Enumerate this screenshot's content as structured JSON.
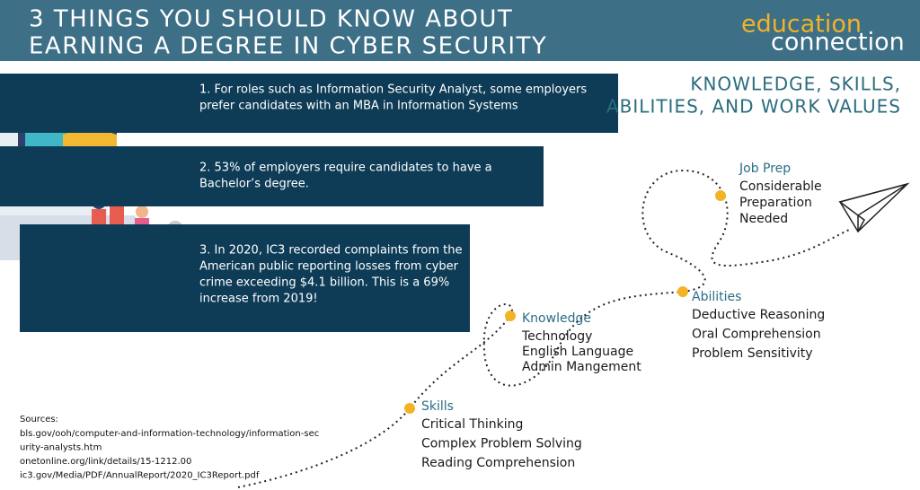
{
  "header": {
    "title_lines": [
      "3 THINGS YOU SHOULD KNOW ABOUT",
      "EARNING A DEGREE IN CYBER SECURITY"
    ]
  },
  "logo": {
    "top": "education",
    "bottom": "connection"
  },
  "facts": [
    {
      "lines": [
        "1. For roles such as Information Security Analyst, some employers",
        "prefer candidates with an MBA in Information Systems"
      ]
    },
    {
      "lines": [
        "2. 53% of employers require candidates to have a",
        "Bachelor’s degree."
      ]
    },
    {
      "lines": [
        "3. In 2020, IC3 recorded complaints from the",
        "American public reporting losses from cyber",
        "crime exceeding $4.1 billion. This is a 69%",
        "increase from 2019!"
      ]
    }
  ],
  "section": {
    "title_lines": [
      "KNOWLEDGE, SKILLS,",
      "ABILITIES, AND WORK VALUES"
    ]
  },
  "milestones": [
    {
      "heading": "Skills",
      "items": [
        "Critical Thinking",
        "Complex Problem Solving",
        "Reading Comprehension"
      ]
    },
    {
      "heading": "Knowledge",
      "items": [
        "Technology",
        "English Language",
        "Admin Mangement"
      ]
    },
    {
      "heading": "Abilities",
      "items": [
        "Deductive Reasoning",
        "Oral Comprehension",
        "Problem Sensitivity"
      ]
    },
    {
      "heading": "Job Prep",
      "items": [
        "Considerable",
        "Preparation",
        "Needed"
      ]
    }
  ],
  "sources": {
    "label": "Sources:",
    "lines": [
      "bls.gov/ooh/computer-and-information-technology/information-sec",
      "urity-analysts.htm",
      "onetonline.org/link/details/15-1212.00",
      "ic3.gov/Media/PDF/AnnualReport/2020_IC3Report.pdf"
    ]
  }
}
